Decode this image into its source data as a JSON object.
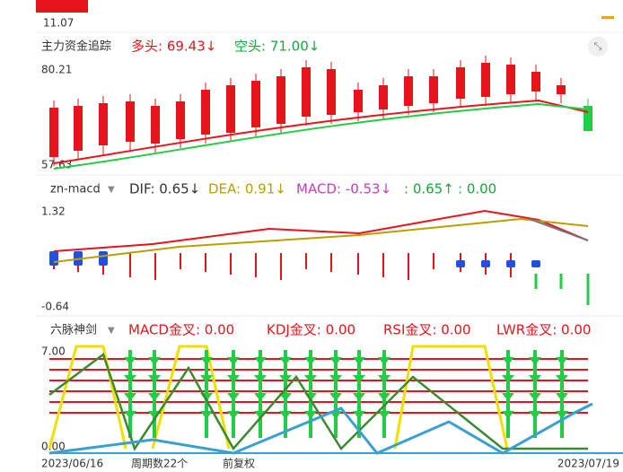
{
  "top": {
    "price": "11.07"
  },
  "panel1": {
    "name": "主力资金追踪",
    "long": "多头: 69.43↓",
    "short": "空头: 71.00↓",
    "axis": [
      "80.21",
      "57.63"
    ]
  },
  "panel2": {
    "name": "zn-macd",
    "dif": "DIF: 0.65↓",
    "dea": "DEA: 0.91↓",
    "macd": "MACD: -0.53↓",
    "extra1": ": 0.65↑",
    "extra2": ": 0.00",
    "axis": [
      "1.32",
      "-0.64"
    ]
  },
  "panel3": {
    "name": "六脉神剑",
    "items": [
      "MACD金叉: 0.00",
      "KDJ金叉: 0.00",
      "RSI金叉: 0.00",
      "LWR金叉: 0.00"
    ],
    "axis": [
      "7.00",
      "0.00"
    ]
  },
  "footer": {
    "start": "2023/06/16",
    "count": "周期数22个",
    "adjust": "前复权",
    "end": "2023/07/19"
  }
}
